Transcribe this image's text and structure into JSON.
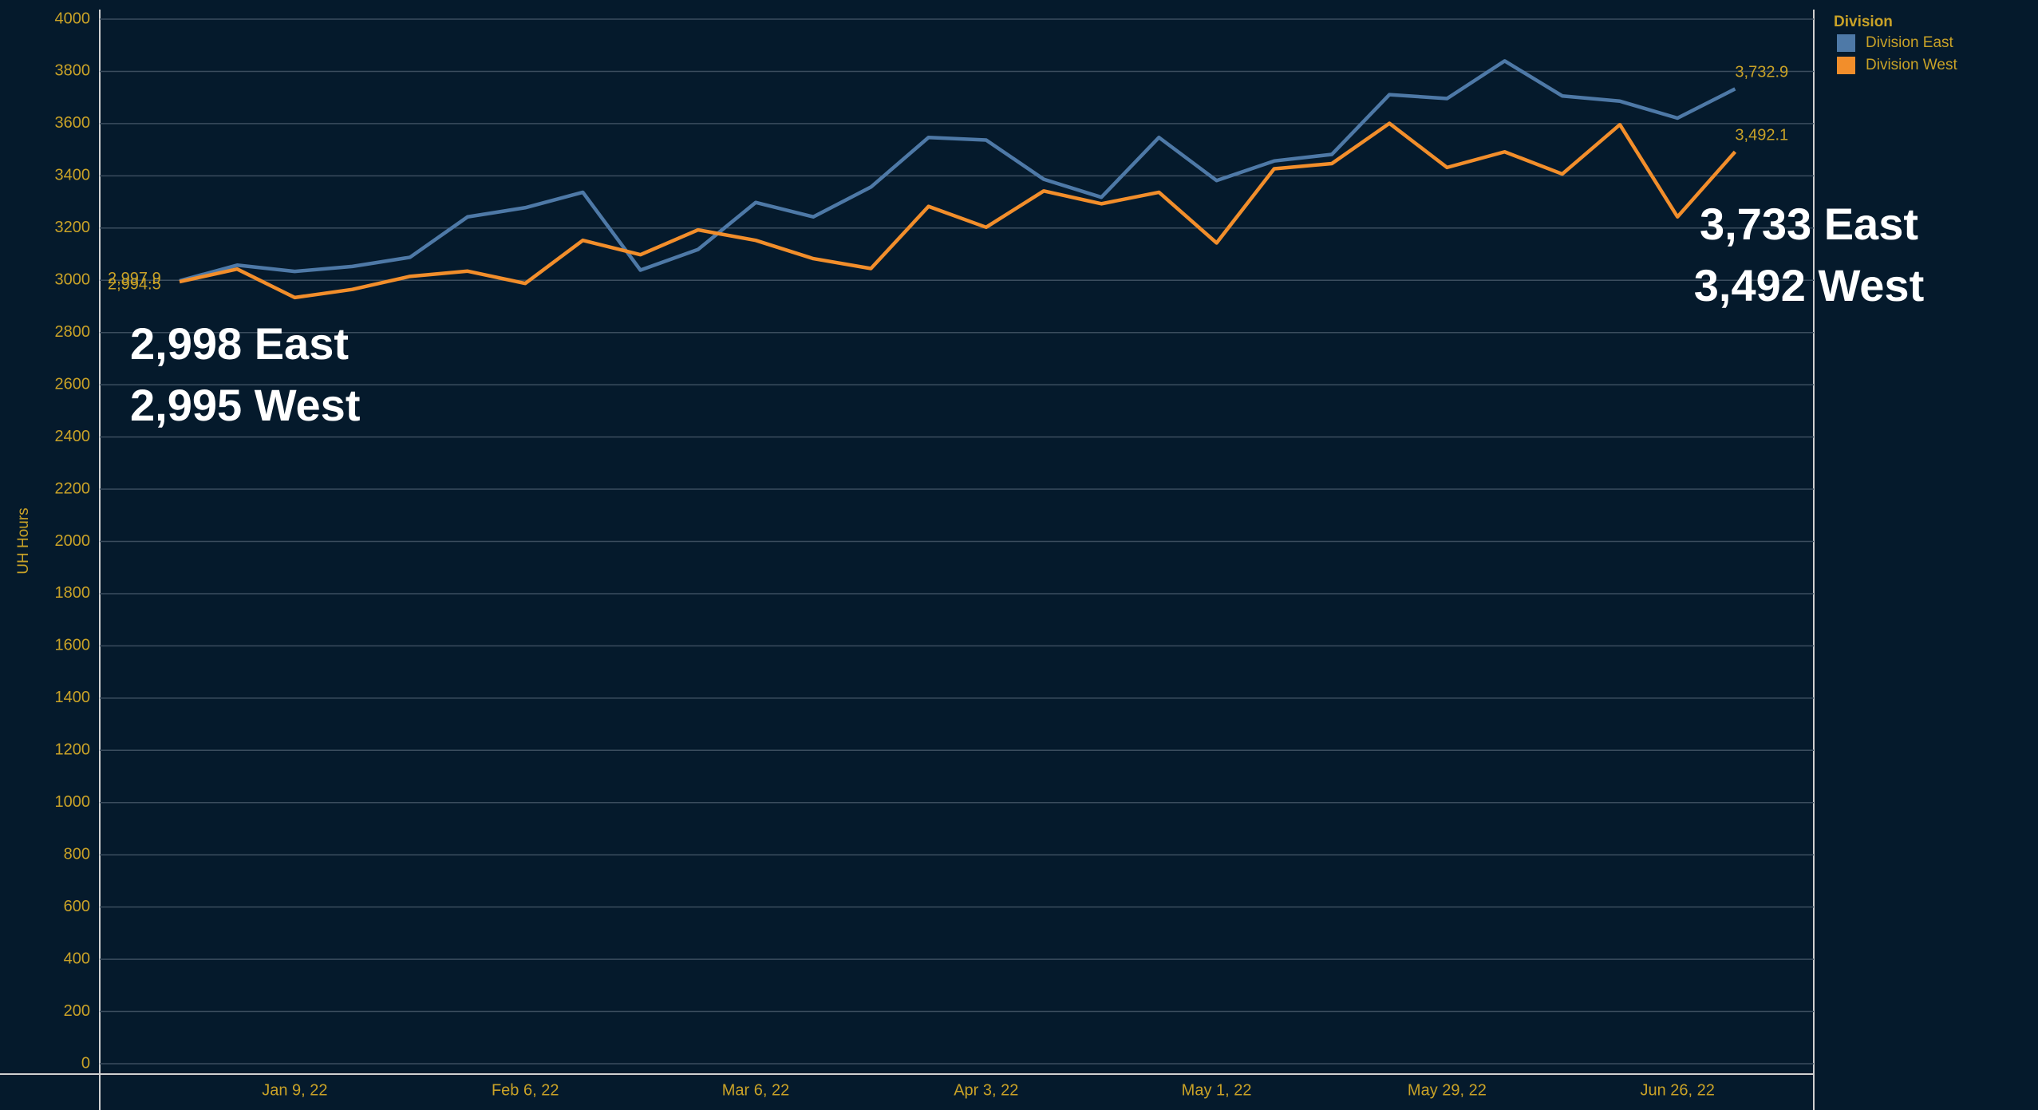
{
  "chart_data": {
    "type": "line",
    "ylabel": "UH Hours",
    "legend_title": "Division",
    "legend": "top-right",
    "grid": true,
    "categories": [
      null,
      null,
      "Jan 9, 22",
      null,
      null,
      null,
      "Feb 6, 22",
      null,
      null,
      null,
      "Mar 6, 22",
      null,
      null,
      null,
      "Apr 3, 22",
      null,
      null,
      null,
      "May 1, 22",
      null,
      null,
      null,
      "May 29, 22",
      null,
      null,
      null,
      "Jun 26, 22",
      null
    ],
    "series": [
      {
        "name": "Division East",
        "color": "#4e79a7",
        "values": [
          2997.9,
          3058,
          3034,
          3053,
          3088,
          3243,
          3278,
          3337,
          3039,
          3118,
          3298,
          3243,
          3357,
          3547,
          3537,
          3387,
          3318,
          3547,
          3382,
          3457,
          3482,
          3711,
          3696,
          3840,
          3706,
          3686,
          3621,
          3732.9
        ],
        "value_labels": [
          "2,997.9",
          null,
          null,
          null,
          null,
          null,
          null,
          null,
          null,
          null,
          null,
          null,
          null,
          null,
          null,
          null,
          null,
          null,
          null,
          null,
          null,
          null,
          null,
          null,
          null,
          null,
          null,
          "3,732.9"
        ]
      },
      {
        "name": "Division West",
        "color": "#f28e2b",
        "values": [
          2994.5,
          3043,
          2934,
          2965,
          3015,
          3035,
          2988,
          3153,
          3098,
          3193,
          3153,
          3083,
          3045,
          3283,
          3203,
          3342,
          3293,
          3337,
          3143,
          3427,
          3447,
          3601,
          3432,
          3492,
          3407,
          3596,
          3243,
          3492.1
        ],
        "value_labels": [
          "2,994.5",
          null,
          null,
          null,
          null,
          null,
          null,
          null,
          null,
          null,
          null,
          null,
          null,
          null,
          null,
          null,
          null,
          null,
          null,
          null,
          null,
          null,
          null,
          null,
          null,
          null,
          null,
          "3,492.1"
        ]
      }
    ],
    "ylim": [
      0,
      4000
    ],
    "yticks": [
      0,
      200,
      400,
      600,
      800,
      1000,
      1200,
      1400,
      1600,
      1800,
      2000,
      2200,
      2400,
      2600,
      2800,
      3000,
      3200,
      3400,
      3600,
      3800,
      4000
    ],
    "annotations": [
      "2,998 East",
      "2,995 West",
      "3,733 East",
      "3,492 West"
    ]
  }
}
